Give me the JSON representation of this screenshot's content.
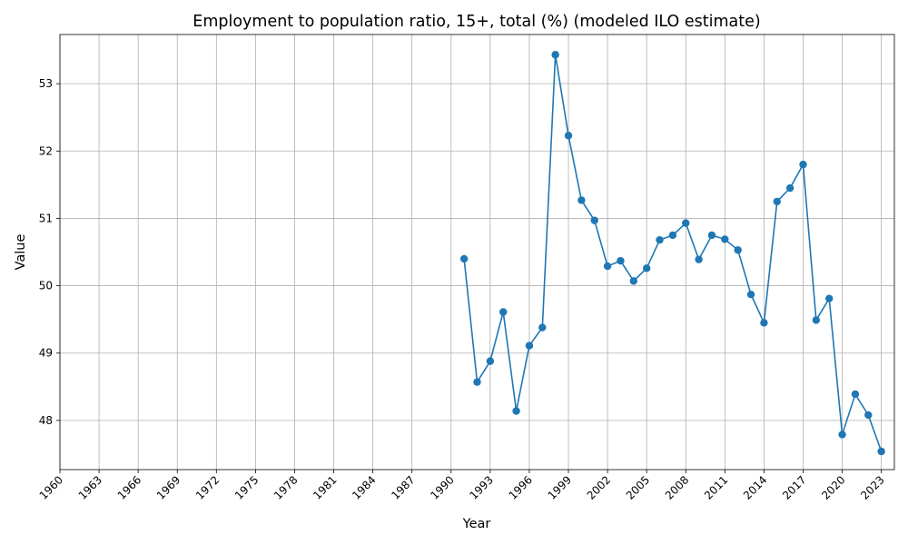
{
  "chart_data": {
    "type": "line",
    "title": "Employment to population ratio, 15+, total (%) (modeled ILO estimate)",
    "xlabel": "Year",
    "ylabel": "Value",
    "xlim": [
      1960,
      2024
    ],
    "ylim": [
      47.27,
      53.73
    ],
    "x_ticks": [
      1960,
      1963,
      1966,
      1969,
      1972,
      1975,
      1978,
      1981,
      1984,
      1987,
      1990,
      1993,
      1996,
      1999,
      2002,
      2005,
      2008,
      2011,
      2014,
      2017,
      2020,
      2023
    ],
    "y_ticks": [
      48,
      49,
      50,
      51,
      52,
      53
    ],
    "grid": true,
    "legend": "none",
    "color": "#1f77b4",
    "marker": "circle",
    "x": [
      1991,
      1992,
      1993,
      1994,
      1995,
      1996,
      1997,
      1998,
      1999,
      2000,
      2001,
      2002,
      2003,
      2004,
      2005,
      2006,
      2007,
      2008,
      2009,
      2010,
      2011,
      2012,
      2013,
      2014,
      2015,
      2016,
      2017,
      2018,
      2019,
      2020,
      2021,
      2022,
      2023
    ],
    "values": [
      50.4,
      48.57,
      48.88,
      49.61,
      48.14,
      49.11,
      49.38,
      53.43,
      52.23,
      51.27,
      50.97,
      50.29,
      50.37,
      50.07,
      50.26,
      50.68,
      50.75,
      50.93,
      50.39,
      50.75,
      50.69,
      50.53,
      49.87,
      49.45,
      51.25,
      51.45,
      51.8,
      49.49,
      49.81,
      47.79,
      48.39,
      48.08,
      47.54
    ]
  }
}
